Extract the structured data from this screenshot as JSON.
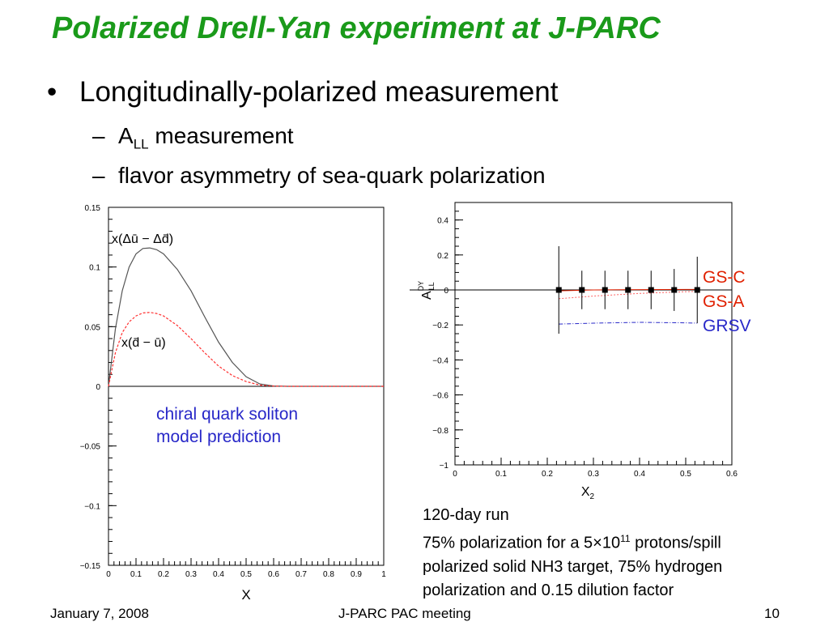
{
  "slide": {
    "title": "Polarized Drell-Yan experiment at J-PARC",
    "bullet_main": "Longitudinally-polarized measurement",
    "sub1_prefix": "A",
    "sub1_sub": "LL",
    "sub1_suffix": " measurement",
    "sub2": "flavor asymmetry of sea-quark polarization",
    "bullet_glyph": "•",
    "dash_glyph": "–"
  },
  "left_note": {
    "line1": "chiral quark soliton",
    "line2": "model prediction"
  },
  "right_note": {
    "line1": "120-day run",
    "line2_a": "75% polarization for a 5",
    "times": "×",
    "line2_b": "10",
    "line2_exp": "11",
    "line2_c": " protons/spill",
    "line3": "polarized solid NH3 target, 75% hydrogen",
    "line4": "polarization and 0.15 dilution factor"
  },
  "footer": {
    "date": "January 7, 2008",
    "meeting": "J-PARC PAC meeting",
    "page": "10"
  },
  "colors": {
    "title": "#1a9a1a",
    "gsc": "#e02000",
    "gsa": "#e02000",
    "grsv": "#2828c8",
    "note": "#2828c8",
    "dashed_red": "#ff3030"
  },
  "chart_data": [
    {
      "type": "line",
      "xlabel": "X",
      "ylabel": "",
      "xlim": [
        0,
        1
      ],
      "ylim": [
        -0.15,
        0.15
      ],
      "xticks": [
        "0",
        "0.1",
        "0.2",
        "0.3",
        "0.4",
        "0.5",
        "0.6",
        "0.7",
        "0.8",
        "0.9",
        "1"
      ],
      "yticks": [
        "0.15",
        "0.1",
        "0.05",
        "0",
        "-0.05",
        "-0.1",
        "-0.15"
      ],
      "series": [
        {
          "name": "x(Δū − Δd̄)",
          "style": "solid",
          "color": "#555555",
          "x": [
            0,
            0.025,
            0.05,
            0.075,
            0.1,
            0.125,
            0.15,
            0.175,
            0.2,
            0.25,
            0.3,
            0.35,
            0.4,
            0.45,
            0.5,
            0.55,
            0.6,
            0.65,
            0.7,
            0.8,
            0.9,
            1.0
          ],
          "y": [
            0,
            0.048,
            0.08,
            0.1,
            0.111,
            0.1155,
            0.116,
            0.1145,
            0.111,
            0.098,
            0.08,
            0.058,
            0.037,
            0.02,
            0.008,
            0.002,
            0.0003,
            0,
            0,
            0,
            0,
            0
          ]
        },
        {
          "name": "x(d̄ − ū)",
          "style": "dashed",
          "color": "#ff3030",
          "x": [
            0,
            0.025,
            0.05,
            0.075,
            0.1,
            0.125,
            0.15,
            0.175,
            0.2,
            0.25,
            0.3,
            0.35,
            0.4,
            0.45,
            0.5,
            0.55,
            0.6,
            0.65,
            0.7,
            0.8,
            0.9,
            1.0
          ],
          "y": [
            0,
            0.028,
            0.045,
            0.054,
            0.059,
            0.0615,
            0.062,
            0.061,
            0.059,
            0.051,
            0.04,
            0.028,
            0.017,
            0.009,
            0.004,
            0.001,
            0.0002,
            0,
            0,
            0,
            0,
            0
          ]
        }
      ]
    },
    {
      "type": "scatter",
      "xlabel": "X",
      "xlabel_sub": "2",
      "ylabel": "A",
      "ylabel_sub": "LL",
      "ylabel_sup": "DY",
      "xlim": [
        0,
        0.6
      ],
      "ylim": [
        -1,
        0.5
      ],
      "xticks": [
        "0",
        "0.1",
        "0.2",
        "0.3",
        "0.4",
        "0.5",
        "0.6"
      ],
      "yticks": [
        "0.4",
        "0.2",
        "0",
        "-0.2",
        "-0.4",
        "-0.6",
        "-0.8",
        "-1"
      ],
      "points": {
        "x": [
          0.225,
          0.275,
          0.325,
          0.375,
          0.425,
          0.475,
          0.525
        ],
        "y": [
          0,
          0,
          0,
          0,
          0,
          0,
          0
        ],
        "err": [
          0.25,
          0.11,
          0.11,
          0.11,
          0.11,
          0.12,
          0.19
        ]
      },
      "series": [
        {
          "name": "GS-C",
          "color": "#e02000",
          "x": [
            0.225,
            0.3,
            0.4,
            0.5,
            0.525
          ],
          "y": [
            -0.005,
            0,
            0.002,
            0.003,
            0.003
          ]
        },
        {
          "name": "GS-A",
          "color": "#ff6060",
          "x": [
            0.225,
            0.3,
            0.4,
            0.5,
            0.525
          ],
          "y": [
            -0.05,
            -0.035,
            -0.02,
            -0.01,
            -0.008
          ]
        },
        {
          "name": "GRSV",
          "color": "#2828c8",
          "x": [
            0.225,
            0.3,
            0.4,
            0.5,
            0.525
          ],
          "y": [
            -0.195,
            -0.19,
            -0.185,
            -0.188,
            -0.19
          ]
        }
      ]
    }
  ]
}
